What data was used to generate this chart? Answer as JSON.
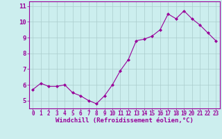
{
  "x": [
    0,
    1,
    2,
    3,
    4,
    5,
    6,
    7,
    8,
    9,
    10,
    11,
    12,
    13,
    14,
    15,
    16,
    17,
    18,
    19,
    20,
    21,
    22,
    23
  ],
  "y": [
    5.7,
    6.1,
    5.9,
    5.9,
    6.0,
    5.5,
    5.3,
    5.0,
    4.8,
    5.3,
    6.0,
    6.9,
    7.6,
    8.8,
    8.9,
    9.1,
    9.5,
    10.5,
    10.2,
    10.7,
    10.2,
    9.8,
    9.3,
    8.8
  ],
  "line_color": "#990099",
  "marker": "D",
  "marker_size": 2,
  "bg_color": "#cceeee",
  "grid_color": "#aacccc",
  "xlabel": "Windchill (Refroidissement éolien,°C)",
  "xlabel_color": "#990099",
  "ylabel_left": [
    "5",
    "6",
    "7",
    "8",
    "9",
    "10",
    "11"
  ],
  "yticks": [
    5,
    6,
    7,
    8,
    9,
    10,
    11
  ],
  "ylim": [
    4.5,
    11.3
  ],
  "xlim": [
    -0.5,
    23.5
  ],
  "xtick_labels": [
    "0",
    "1",
    "2",
    "3",
    "4",
    "5",
    "6",
    "7",
    "8",
    "9",
    "10",
    "11",
    "12",
    "13",
    "14",
    "15",
    "16",
    "17",
    "18",
    "19",
    "20",
    "21",
    "22",
    "23"
  ],
  "tick_color": "#990099",
  "spine_color": "#990099",
  "tick_fontsize": 5.5,
  "ytick_fontsize": 6.5,
  "xlabel_fontsize": 6.5
}
